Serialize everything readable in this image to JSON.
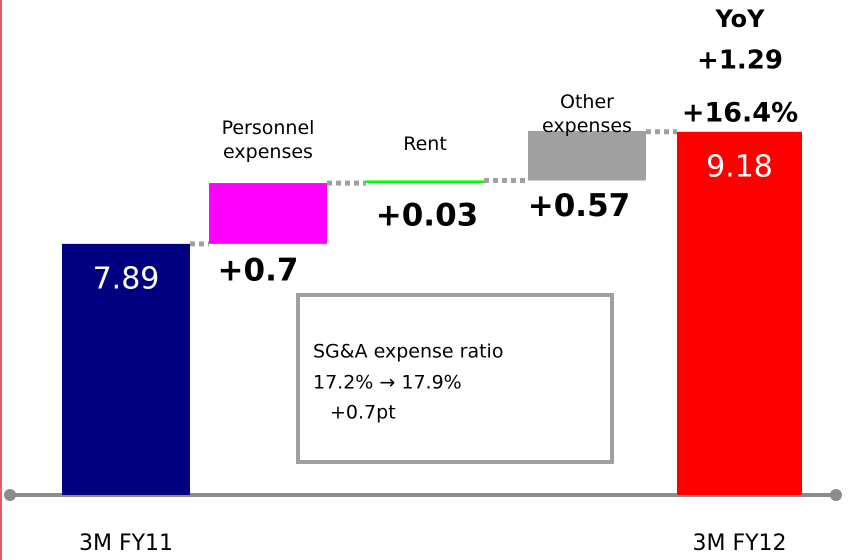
{
  "chart_data": {
    "type": "waterfall",
    "categories": [
      "3M FY11",
      "Personnel expenses",
      "Rent",
      "Other expenses",
      "3M FY12"
    ],
    "values": [
      7.89,
      0.7,
      0.03,
      0.57,
      9.18
    ],
    "value_labels": [
      "7.89",
      "+0.7",
      "+0.03",
      "+0.57",
      "9.18"
    ],
    "colors": [
      "#000080",
      "#ff00ff",
      "#00ff00",
      "#a0a0a0",
      "#ff0000"
    ],
    "ylim": [
      5,
      9.5
    ],
    "annotations": {
      "yoy": [
        "YoY",
        "+1.29",
        "+16.4%"
      ],
      "box": [
        "SG&A expense ratio",
        "17.2% → 17.9%",
        "+0.7pt"
      ]
    }
  }
}
